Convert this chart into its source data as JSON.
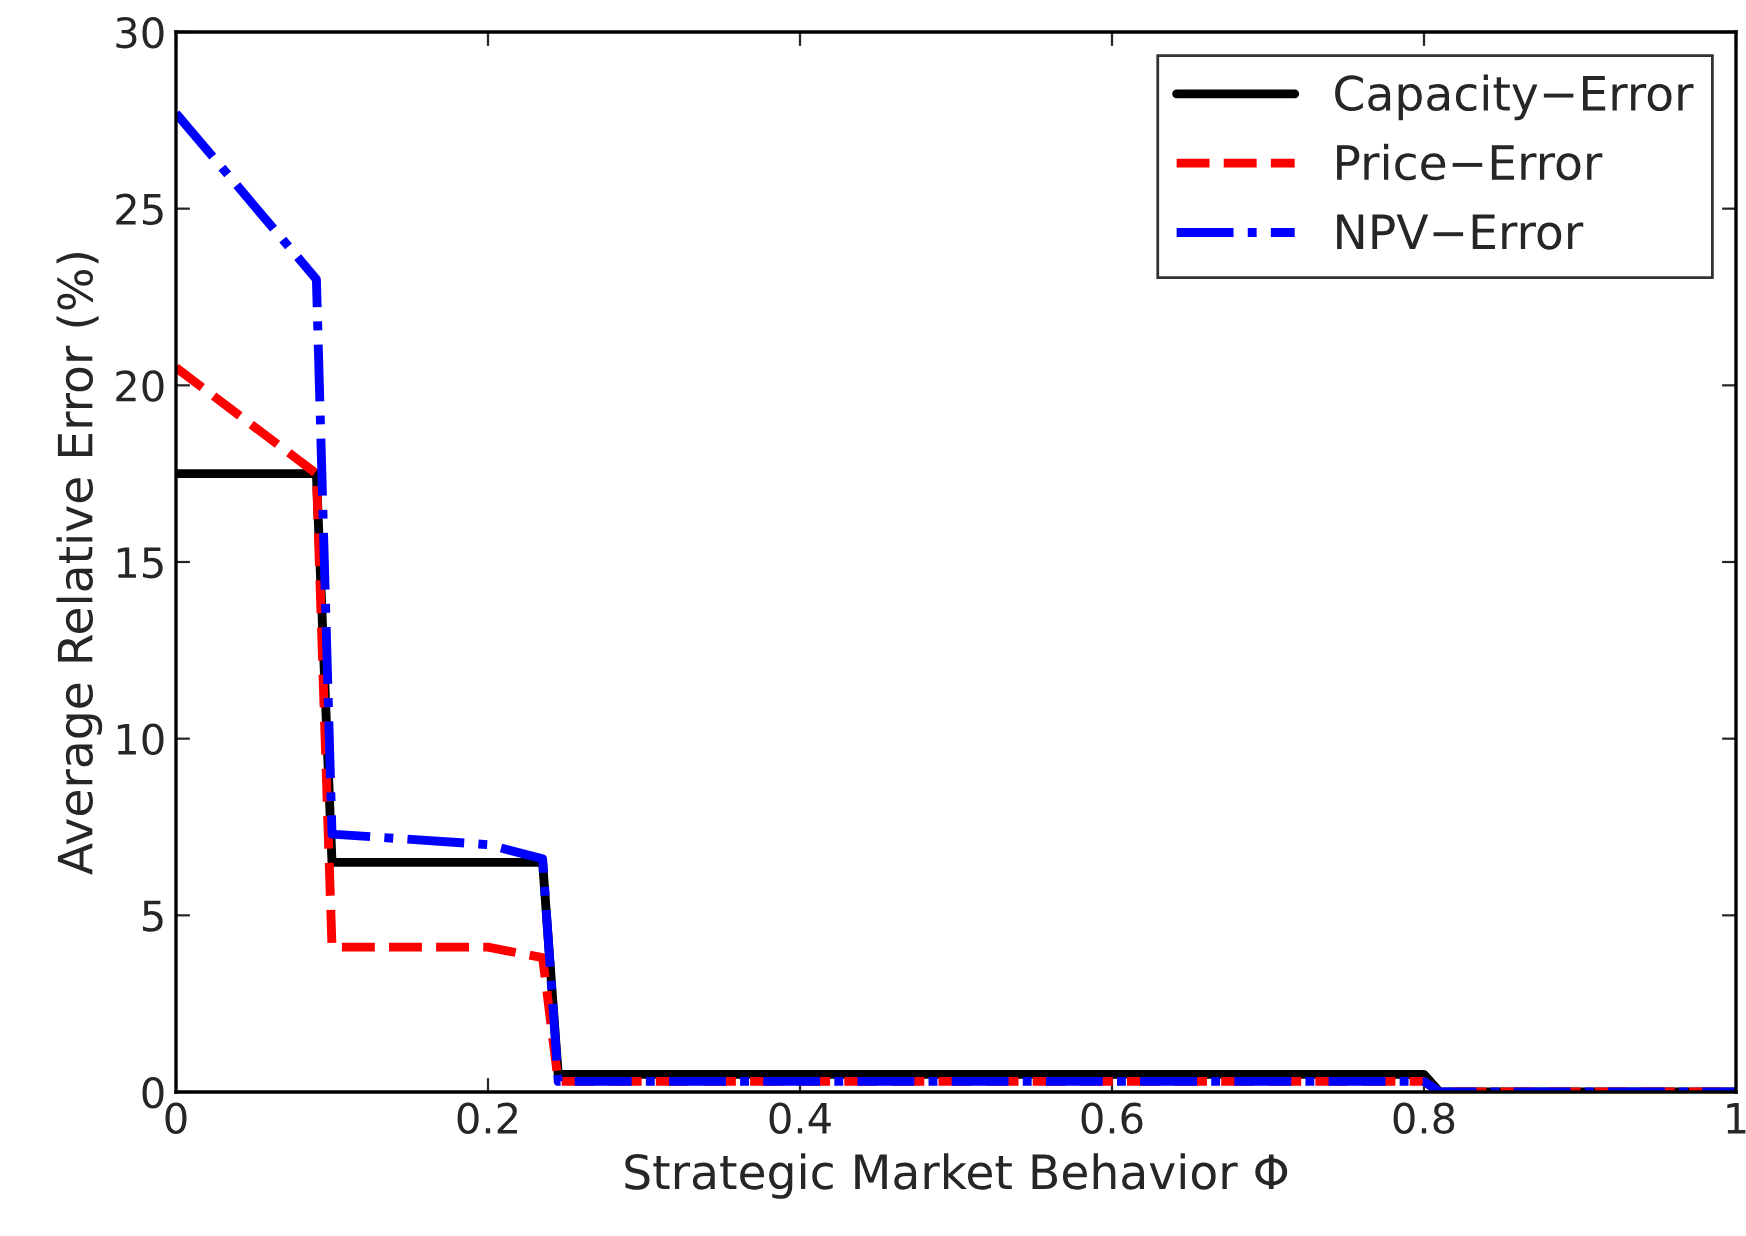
{
  "chart_data": {
    "type": "line",
    "xlabel": "Strategic Market Behavior Φ",
    "ylabel": "Average Relative Error (%)",
    "xlim": [
      0,
      1
    ],
    "ylim": [
      0,
      30
    ],
    "xticks": [
      0,
      0.2,
      0.4,
      0.6,
      0.8,
      1
    ],
    "yticks": [
      0,
      5,
      10,
      15,
      20,
      25,
      30
    ],
    "grid": false,
    "legend": "top right",
    "series": [
      {
        "name": "Capacity−Error",
        "color": "#000000",
        "line_style": "solid",
        "x": [
          0,
          0.09,
          0.1,
          0.235,
          0.245,
          0.8,
          0.81,
          1
        ],
        "values": [
          17.5,
          17.5,
          6.5,
          6.5,
          0.5,
          0.5,
          0,
          0
        ]
      },
      {
        "name": "Price−Error",
        "color": "#ff0000",
        "line_style": "dashed",
        "x": [
          0,
          0.09,
          0.1,
          0.2,
          0.235,
          0.245,
          0.8,
          0.81,
          1
        ],
        "values": [
          20.5,
          17.5,
          4.1,
          4.1,
          3.8,
          0.3,
          0.3,
          0,
          0
        ]
      },
      {
        "name": "NPV−Error",
        "color": "#0000ff",
        "line_style": "dashdot",
        "x": [
          0,
          0.09,
          0.1,
          0.2,
          0.235,
          0.245,
          0.8,
          0.81,
          1
        ],
        "values": [
          27.7,
          23,
          7.3,
          7.0,
          6.6,
          0.3,
          0.3,
          0,
          0
        ]
      }
    ]
  }
}
